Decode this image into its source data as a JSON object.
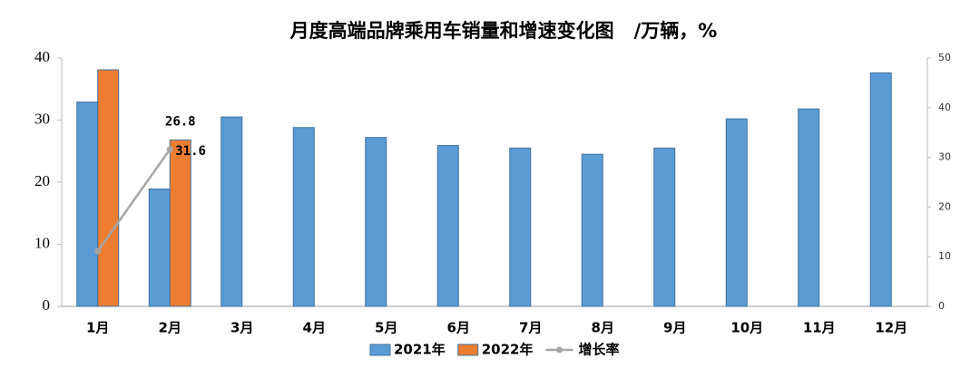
{
  "chart_data": {
    "type": "bar",
    "title": "月度高端品牌乘用车销量和增速变化图   /万辆，%",
    "categories": [
      "1月",
      "2月",
      "3月",
      "4月",
      "5月",
      "6月",
      "7月",
      "8月",
      "9月",
      "10月",
      "11月",
      "12月"
    ],
    "series": [
      {
        "name": "2021年",
        "type": "bar",
        "color": "#5b9bd5",
        "values": [
          32.9,
          18.9,
          30.5,
          28.8,
          27.2,
          25.9,
          25.5,
          24.5,
          25.5,
          30.2,
          31.8,
          37.6
        ]
      },
      {
        "name": "2022年",
        "type": "bar",
        "color": "#ed7d31",
        "values": [
          38.1,
          26.8,
          null,
          null,
          null,
          null,
          null,
          null,
          null,
          null,
          null,
          null
        ],
        "value_labels": [
          null,
          "26.8",
          null,
          null,
          null,
          null,
          null,
          null,
          null,
          null,
          null,
          null
        ]
      },
      {
        "name": "增长率",
        "type": "line",
        "axis": "y2",
        "color": "#a5a5a5",
        "values": [
          11.1,
          31.6,
          null,
          null,
          null,
          null,
          null,
          null,
          null,
          null,
          null,
          null
        ],
        "value_labels": [
          null,
          "31.6",
          null,
          null,
          null,
          null,
          null,
          null,
          null,
          null,
          null,
          null
        ]
      }
    ],
    "ylim": [
      0,
      40
    ],
    "yticks": [
      0,
      10,
      20,
      30,
      40
    ],
    "y2lim": [
      0,
      50
    ],
    "y2ticks": [
      0,
      10,
      20,
      30,
      40,
      50
    ],
    "legend": "bottom"
  }
}
